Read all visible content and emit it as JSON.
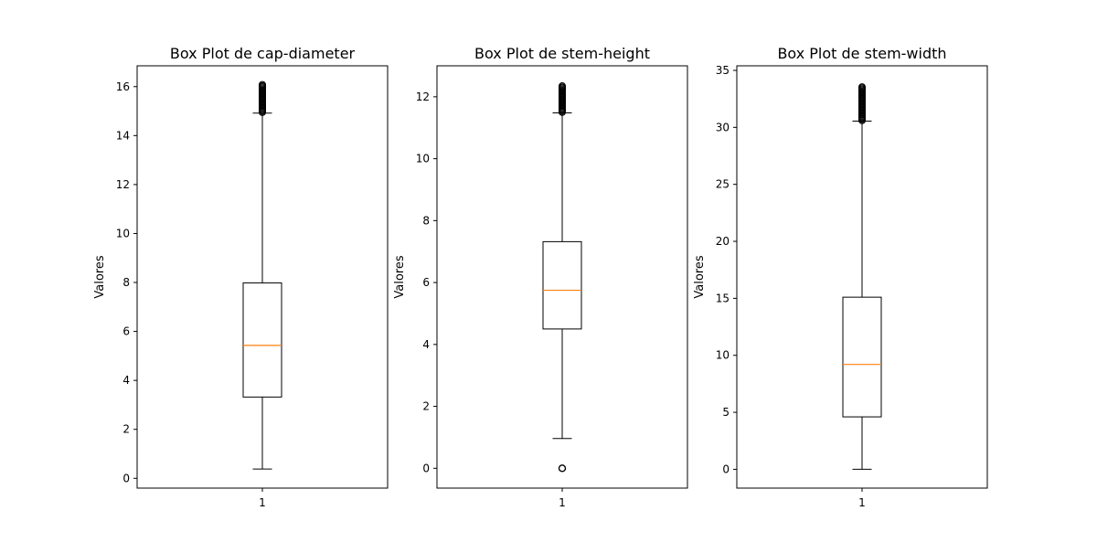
{
  "colors": {
    "box": "#000000",
    "median": "#ff7f0e",
    "background": "#ffffff"
  },
  "chart_data": [
    {
      "type": "box",
      "title": "Box Plot de cap-diameter",
      "ylabel": "Valores",
      "categories": [
        "1"
      ],
      "ylim": [
        -0.4,
        16.85
      ],
      "yticks": [
        0,
        2,
        4,
        6,
        8,
        10,
        12,
        14,
        16
      ],
      "box": {
        "whisker_low": 0.38,
        "q1": 3.32,
        "median": 5.43,
        "q3": 7.98,
        "whisker_high": 14.92
      },
      "outliers_range": [
        14.95,
        16.08
      ]
    },
    {
      "type": "box",
      "title": "Box Plot de stem-height",
      "ylabel": "Valores",
      "categories": [
        "1"
      ],
      "ylim": [
        -0.64,
        13.0
      ],
      "yticks": [
        0,
        2,
        4,
        6,
        8,
        10,
        12
      ],
      "box": {
        "whisker_low": 0.96,
        "q1": 4.5,
        "median": 5.75,
        "q3": 7.32,
        "whisker_high": 11.48
      },
      "outliers_range": [
        11.5,
        12.35
      ],
      "low_outliers": [
        0
      ]
    },
    {
      "type": "box",
      "title": "Box Plot de stem-width",
      "ylabel": "Valores",
      "categories": [
        "1"
      ],
      "ylim": [
        -1.65,
        35.4
      ],
      "yticks": [
        0,
        5,
        10,
        15,
        20,
        25,
        30,
        35
      ],
      "box": {
        "whisker_low": 0,
        "q1": 4.6,
        "median": 9.2,
        "q3": 15.1,
        "whisker_high": 30.55
      },
      "outliers_range": [
        30.6,
        33.55
      ]
    }
  ]
}
